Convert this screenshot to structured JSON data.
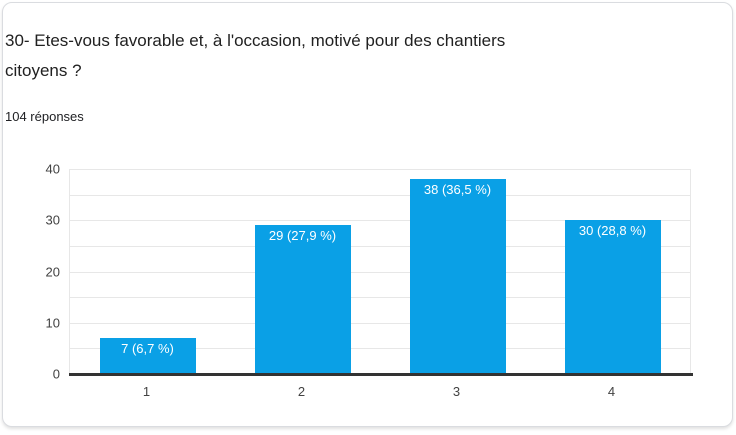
{
  "header": {
    "title_lines": [
      "30- Etes-vous favorable et, à l'occasion, motivé pour des chantiers",
      "citoyens ?"
    ],
    "responses_label": "104 réponses"
  },
  "chart_data": {
    "type": "bar",
    "title": "30- Etes-vous favorable et, à l'occasion, motivé pour des chantiers citoyens ?",
    "subtitle": "104 réponses",
    "categories": [
      "1",
      "2",
      "3",
      "4"
    ],
    "values": [
      7,
      29,
      38,
      30
    ],
    "percentages": [
      6.7,
      27.9,
      36.5,
      28.8
    ],
    "bar_labels": [
      "7 (6,7 %)",
      "29 (27,9 %)",
      "38 (36,5 %)",
      "30 (28,8 %)"
    ],
    "xlabel": "",
    "ylabel": "",
    "ylim": [
      0,
      40
    ],
    "yticks": [
      0,
      10,
      20,
      30,
      40
    ],
    "minor_grid_step": 5,
    "grid": true,
    "legend": "none",
    "colors": {
      "bar": "#0aa0e6",
      "bar_label": "#ffffff",
      "gridline": "#e7e7e7",
      "baseline": "#333333",
      "axis_label": "#424242"
    }
  }
}
